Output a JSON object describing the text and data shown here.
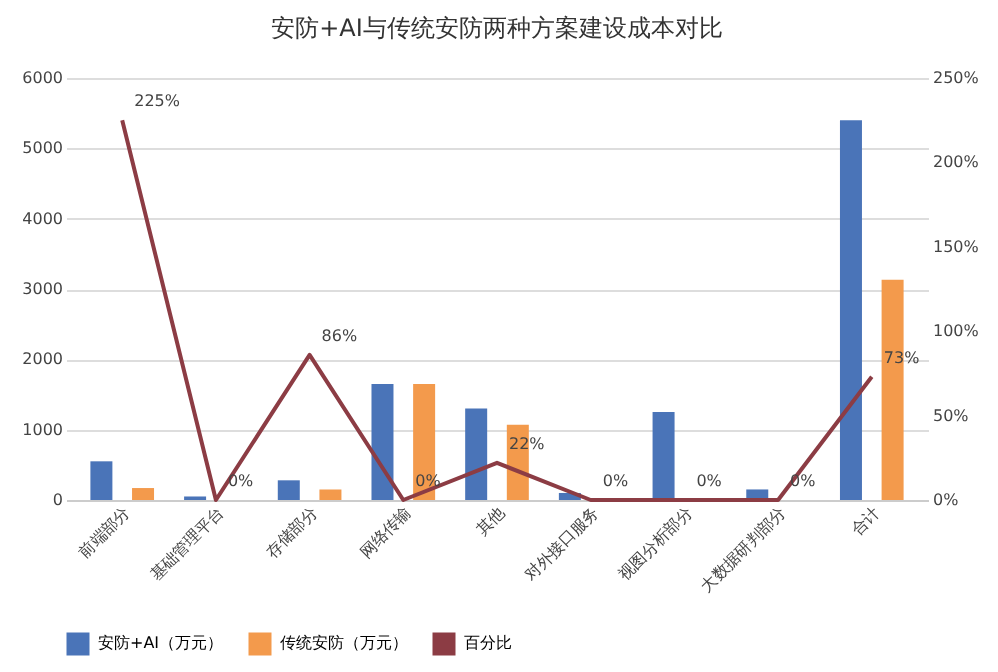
{
  "chart_data": {
    "type": "bar",
    "title": "安防+AI与传统安防两种方案建设成本对比",
    "categories": [
      "前端部分",
      "基础管理平台",
      "存储部分",
      "网络传输",
      "其他",
      "对外接口服务",
      "视图分析部分",
      "大数据研判部分",
      "合计"
    ],
    "series": [
      {
        "name": "安防+AI（万元）",
        "color": "#4a74b8",
        "values": [
          550,
          50,
          280,
          1650,
          1300,
          100,
          1250,
          150,
          5400
        ]
      },
      {
        "name": "传统安防（万元）",
        "color": "#f39a4c",
        "values": [
          170,
          0,
          150,
          1650,
          1070,
          0,
          0,
          0,
          3130
        ]
      },
      {
        "name": "百分比",
        "type": "line",
        "axis": "y2",
        "color": "#8c3c44",
        "values": [
          225,
          0,
          86,
          0,
          22,
          0,
          0,
          0,
          73
        ],
        "value_labels": [
          "225%",
          "0%",
          "86%",
          "0%",
          "22%",
          "0%",
          "0%",
          "0%",
          "73%"
        ]
      }
    ],
    "ylim": [
      0,
      6000
    ],
    "yticks": [
      0,
      1000,
      2000,
      3000,
      4000,
      5000,
      6000
    ],
    "y2lim": [
      0,
      250
    ],
    "y2ticks": [
      {
        "value": 0,
        "label": "0%"
      },
      {
        "value": 50,
        "label": "50%"
      },
      {
        "value": 100,
        "label": "100%"
      },
      {
        "value": 150,
        "label": "150%"
      },
      {
        "value": 200,
        "label": "200%"
      },
      {
        "value": 250,
        "label": "250%"
      }
    ],
    "grid": "y",
    "legend": "bottom"
  }
}
